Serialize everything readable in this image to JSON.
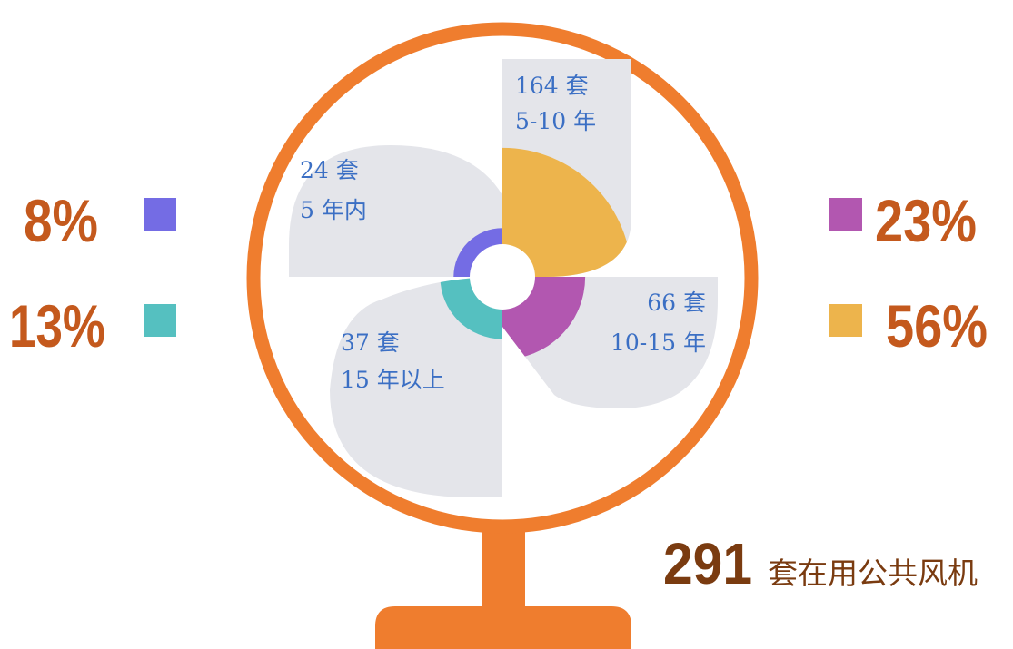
{
  "chart_data": {
    "type": "fan",
    "categories": [
      "5 年内",
      "5-10 年",
      "10-15 年",
      "15 年以上"
    ],
    "values": [
      24,
      164,
      66,
      37
    ],
    "value_labels": [
      "24 套",
      "164 套",
      "66 套",
      "37 套"
    ],
    "percents": [
      8,
      56,
      23,
      13
    ],
    "percent_labels": [
      "8%",
      "56%",
      "23%",
      "13%"
    ],
    "colors": [
      "#746ce4",
      "#edb44c",
      "#b257b0",
      "#55c0c0"
    ],
    "total": 291,
    "total_label": "套在用公共风机"
  }
}
